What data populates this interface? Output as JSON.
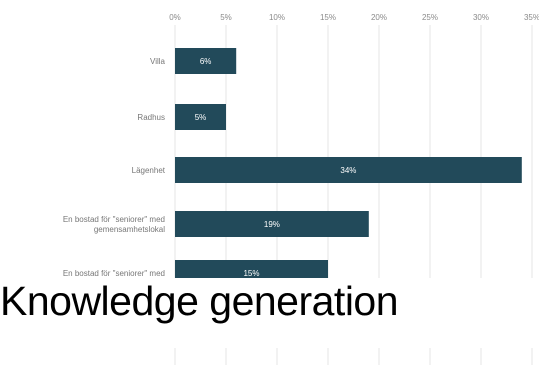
{
  "chart_data": {
    "type": "bar",
    "orientation": "horizontal",
    "categories": [
      [
        "Villa"
      ],
      [
        "Radhus"
      ],
      [
        "Lägenhet"
      ],
      [
        "En bostad för \"seniorer\" med",
        "gemensamhetslokal"
      ],
      [
        "En bostad för \"seniorer\" med"
      ]
    ],
    "values": [
      6,
      5,
      34,
      19,
      15
    ],
    "value_labels": [
      "6%",
      "5%",
      "34%",
      "19%",
      "15%"
    ],
    "x_ticks": [
      "0%",
      "5%",
      "10%",
      "15%",
      "20%",
      "25%",
      "30%",
      "35%"
    ],
    "xlim": [
      0,
      35
    ],
    "grid": true,
    "bar_color": "#224a5a",
    "title": "",
    "xlabel": "",
    "ylabel": ""
  },
  "overlay": {
    "text": "Knowledge generation"
  }
}
